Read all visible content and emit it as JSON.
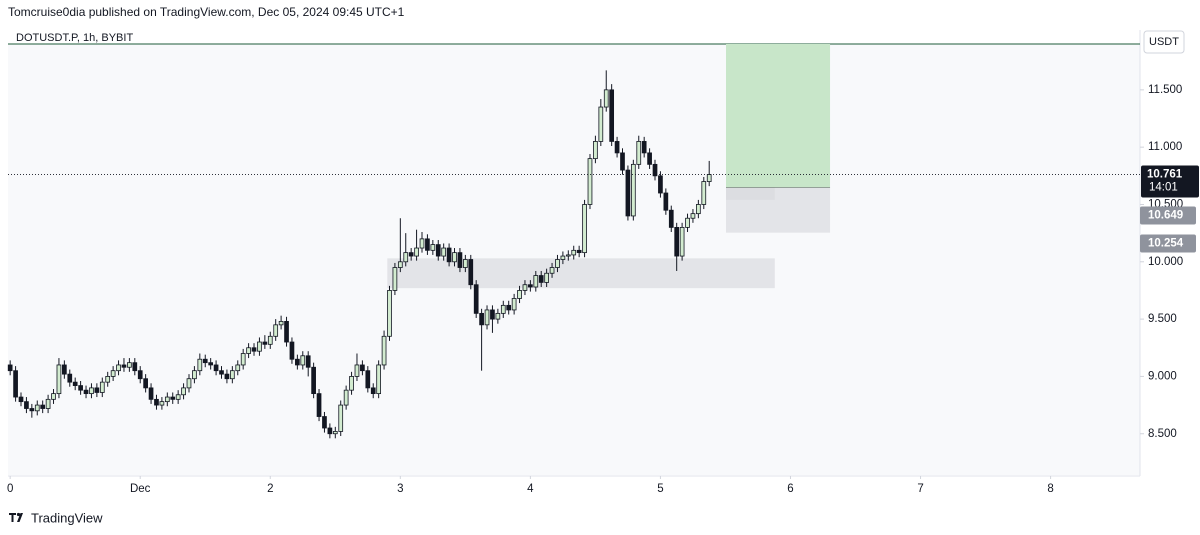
{
  "chart_data": {
    "type": "candlestick",
    "publisher": "Tomcruise0dia published on TradingView.com, Dec 05, 2024 09:45 UTC+1",
    "title": "DOTUSDT.P, 1h, BYBIT",
    "currency": "USDT",
    "brand": "TradingView",
    "countdown": "14:01",
    "up_color": "#d3ecd0",
    "down_color": "#131722",
    "wick_color": "#131722",
    "xlim": [
      -0.4,
      208.5
    ],
    "ylim": [
      8.14,
      11.9
    ],
    "xticks": [
      0,
      {
        "value": 24,
        "label": "Dec"
      },
      {
        "value": 48,
        "label": "2"
      },
      {
        "value": 72,
        "label": "3"
      },
      {
        "value": 96,
        "label": "4"
      },
      {
        "value": 120,
        "label": "5"
      },
      {
        "value": 144,
        "label": "6"
      },
      {
        "value": 168,
        "label": "7"
      },
      {
        "value": 192,
        "label": "8"
      }
    ],
    "yticks": [
      {
        "value": 8.5,
        "label": "8.500"
      },
      {
        "value": 9,
        "label": "9.000"
      },
      {
        "value": 9.5,
        "label": "9.500"
      },
      {
        "value": 10,
        "label": "10.000"
      },
      {
        "value": 10.5,
        "label": "10.500"
      },
      {
        "value": 11,
        "label": "11.000"
      },
      {
        "value": 11.5,
        "label": "11.500"
      }
    ],
    "x": [
      0,
      1,
      2,
      3,
      4,
      5,
      6,
      7,
      8,
      9,
      10,
      11,
      12,
      13,
      14,
      15,
      16,
      17,
      18,
      19,
      20,
      21,
      22,
      23,
      24,
      25,
      26,
      27,
      28,
      29,
      30,
      31,
      32,
      33,
      34,
      35,
      36,
      37,
      38,
      39,
      40,
      41,
      42,
      43,
      44,
      45,
      46,
      47,
      48,
      49,
      50,
      51,
      52,
      53,
      54,
      55,
      56,
      57,
      58,
      59,
      60,
      61,
      62,
      63,
      64,
      65,
      66,
      67,
      68,
      69,
      70,
      71,
      72,
      73,
      74,
      75,
      76,
      77,
      78,
      79,
      80,
      81,
      82,
      83,
      84,
      85,
      86,
      87,
      88,
      89,
      90,
      91,
      92,
      93,
      94,
      95,
      96,
      97,
      98,
      99,
      100,
      101,
      102,
      103,
      104,
      105,
      106,
      107,
      108,
      109,
      110,
      111,
      112,
      113,
      114,
      115,
      116,
      117,
      118,
      119,
      120,
      121,
      122,
      123,
      124,
      125,
      126,
      127,
      128,
      129
    ],
    "open": [
      9.1,
      9.05,
      8.82,
      8.78,
      8.72,
      8.7,
      8.75,
      8.72,
      8.8,
      8.85,
      9.1,
      9.02,
      8.95,
      8.92,
      8.88,
      8.85,
      8.9,
      8.86,
      8.95,
      9.0,
      9.05,
      9.1,
      9.08,
      9.12,
      9.05,
      8.98,
      8.9,
      8.8,
      8.75,
      8.78,
      8.82,
      8.8,
      8.84,
      8.9,
      8.98,
      9.05,
      9.15,
      9.12,
      9.1,
      9.05,
      9.02,
      8.98,
      9.05,
      9.1,
      9.2,
      9.25,
      9.22,
      9.3,
      9.28,
      9.35,
      9.45,
      9.48,
      9.3,
      9.15,
      9.1,
      9.18,
      9.08,
      8.85,
      8.65,
      8.55,
      8.5,
      8.52,
      8.75,
      8.88,
      9.0,
      9.1,
      9.05,
      8.9,
      8.85,
      9.1,
      9.35,
      9.75,
      9.95,
      10.0,
      10.08,
      10.05,
      10.12,
      10.2,
      10.1,
      10.15,
      10.05,
      10.12,
      10.0,
      10.08,
      9.95,
      10.02,
      9.8,
      9.55,
      9.45,
      9.58,
      9.5,
      9.55,
      9.62,
      9.58,
      9.68,
      9.75,
      9.8,
      9.78,
      9.88,
      9.82,
      9.9,
      9.95,
      10.02,
      10.05,
      10.06,
      10.1,
      10.08,
      10.5,
      10.9,
      11.05,
      11.35,
      11.5,
      11.05,
      10.95,
      10.8,
      10.4,
      10.85,
      11.05,
      10.95,
      10.85,
      10.75,
      10.6,
      10.45,
      10.3,
      10.05,
      10.3,
      10.38,
      10.42,
      10.5,
      10.7
    ],
    "high": [
      9.14,
      9.09,
      8.86,
      8.82,
      8.76,
      8.79,
      8.79,
      8.84,
      8.89,
      9.16,
      9.14,
      9.06,
      8.99,
      8.96,
      8.92,
      8.94,
      8.94,
      8.99,
      9.04,
      9.09,
      9.14,
      9.16,
      9.16,
      9.16,
      9.09,
      9.02,
      8.94,
      8.84,
      8.82,
      8.86,
      8.86,
      8.88,
      8.94,
      9.02,
      9.09,
      9.2,
      9.19,
      9.16,
      9.14,
      9.09,
      9.06,
      9.09,
      9.14,
      9.24,
      9.29,
      9.29,
      9.34,
      9.36,
      9.39,
      9.5,
      9.53,
      9.52,
      9.34,
      9.19,
      9.22,
      9.22,
      9.12,
      8.89,
      8.69,
      8.59,
      8.56,
      8.79,
      8.92,
      9.04,
      9.2,
      9.14,
      9.09,
      8.94,
      9.14,
      9.4,
      9.79,
      9.99,
      10.38,
      10.25,
      10.12,
      10.28,
      10.26,
      10.24,
      10.19,
      10.19,
      10.16,
      10.16,
      10.12,
      10.12,
      10.06,
      10.06,
      9.84,
      9.59,
      9.62,
      9.62,
      9.59,
      9.66,
      9.66,
      9.72,
      9.79,
      9.84,
      9.84,
      9.92,
      9.92,
      9.94,
      9.99,
      10.06,
      10.09,
      10.1,
      10.14,
      10.14,
      10.54,
      10.94,
      11.1,
      11.42,
      11.67,
      11.55,
      11.09,
      10.99,
      10.84,
      10.89,
      11.1,
      11.09,
      10.99,
      10.89,
      10.79,
      10.64,
      10.49,
      10.34,
      10.34,
      10.42,
      10.46,
      10.54,
      10.74,
      10.88
    ],
    "low": [
      9.01,
      8.78,
      8.74,
      8.68,
      8.64,
      8.66,
      8.68,
      8.68,
      8.76,
      8.81,
      8.98,
      8.91,
      8.88,
      8.84,
      8.81,
      8.81,
      8.82,
      8.82,
      8.91,
      8.96,
      9.01,
      9.04,
      9.04,
      9.01,
      8.94,
      8.86,
      8.76,
      8.71,
      8.71,
      8.74,
      8.76,
      8.76,
      8.8,
      8.86,
      8.94,
      9.01,
      9.08,
      9.06,
      9.01,
      8.98,
      8.94,
      8.94,
      9.01,
      9.06,
      9.16,
      9.18,
      9.18,
      9.24,
      9.24,
      9.31,
      9.41,
      9.26,
      9.11,
      9.06,
      9.06,
      9.0,
      8.81,
      8.61,
      8.51,
      8.46,
      8.46,
      8.48,
      8.71,
      8.84,
      8.96,
      9.01,
      8.86,
      8.81,
      8.81,
      9.06,
      9.31,
      9.71,
      9.91,
      9.96,
      10.01,
      10.01,
      10.08,
      10.06,
      10.06,
      10.01,
      10.01,
      9.96,
      9.96,
      9.91,
      9.91,
      9.76,
      9.51,
      9.05,
      9.41,
      9.38,
      9.46,
      9.51,
      9.54,
      9.54,
      9.64,
      9.71,
      9.74,
      9.74,
      9.78,
      9.78,
      9.86,
      9.91,
      9.98,
      10.01,
      10.02,
      10.04,
      10.04,
      10.46,
      10.86,
      11.01,
      11.31,
      11.01,
      10.91,
      10.76,
      10.36,
      10.36,
      10.81,
      10.91,
      10.81,
      10.71,
      10.56,
      10.41,
      10.26,
      9.92,
      10.01,
      10.26,
      10.34,
      10.38,
      10.46,
      10.66
    ],
    "close": [
      9.05,
      8.82,
      8.78,
      8.72,
      8.7,
      8.75,
      8.72,
      8.8,
      8.85,
      9.1,
      9.02,
      8.95,
      8.92,
      8.88,
      8.85,
      8.9,
      8.86,
      8.95,
      9.0,
      9.05,
      9.1,
      9.08,
      9.12,
      9.05,
      8.98,
      8.9,
      8.8,
      8.75,
      8.78,
      8.82,
      8.8,
      8.84,
      8.9,
      8.98,
      9.05,
      9.15,
      9.12,
      9.1,
      9.05,
      9.02,
      8.98,
      9.05,
      9.1,
      9.2,
      9.25,
      9.22,
      9.3,
      9.28,
      9.35,
      9.45,
      9.48,
      9.3,
      9.15,
      9.1,
      9.18,
      9.08,
      8.85,
      8.65,
      8.55,
      8.5,
      8.52,
      8.75,
      8.88,
      9.0,
      9.1,
      9.05,
      8.9,
      8.85,
      9.1,
      9.35,
      9.75,
      9.95,
      10.0,
      10.08,
      10.05,
      10.12,
      10.2,
      10.1,
      10.15,
      10.05,
      10.12,
      10.0,
      10.08,
      9.95,
      10.02,
      9.8,
      9.55,
      9.45,
      9.58,
      9.5,
      9.55,
      9.62,
      9.58,
      9.68,
      9.75,
      9.8,
      9.78,
      9.88,
      9.82,
      9.9,
      9.95,
      10.02,
      10.05,
      10.06,
      10.1,
      10.08,
      10.5,
      10.9,
      11.05,
      11.35,
      11.5,
      11.05,
      10.95,
      10.8,
      10.4,
      10.85,
      11.05,
      10.95,
      10.85,
      10.75,
      10.6,
      10.45,
      10.3,
      10.05,
      10.3,
      10.38,
      10.42,
      10.5,
      10.7,
      10.761
    ],
    "zones": [
      {
        "x": [
          69.6,
          141.1
        ],
        "y": [
          9.77,
          10.03
        ],
        "color": "#e3e4e8"
      },
      {
        "x": [
          132.1,
          141.1
        ],
        "y": [
          10.54,
          10.649
        ],
        "color": "#c9cbd1"
      }
    ],
    "position": {
      "x": [
        132.1,
        151.3
      ],
      "entry": 10.649,
      "stop": 10.254,
      "target": 11.9,
      "profit_color": "#c8e6c9",
      "loss_color": "#dfe0e4"
    }
  }
}
